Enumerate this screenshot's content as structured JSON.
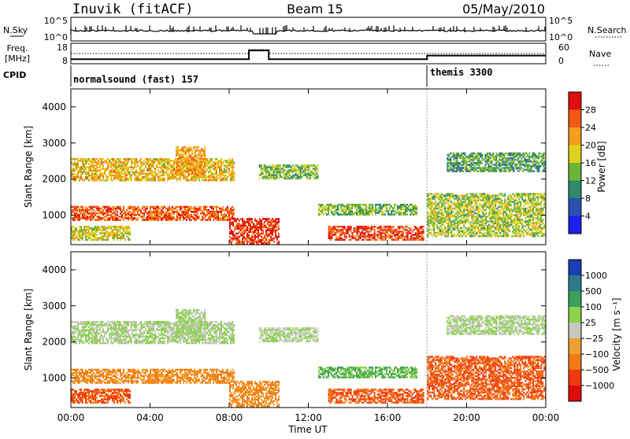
{
  "header": {
    "station": "Inuvik (fitACF)",
    "beam": "Beam 15",
    "date": "05/May/2010"
  },
  "nsky_panel": {
    "left_label": "N.Sky",
    "right_label": "N.Search",
    "ticks_left": [
      "10^5",
      "10^0"
    ],
    "ticks_right": [
      "10^5",
      "10^0"
    ]
  },
  "freq_panel": {
    "left_label_1": "Freq.",
    "left_label_2": "[MHz]",
    "right_label": "Nave",
    "ticks_left": [
      "18",
      "8"
    ],
    "ticks_right": [
      "60",
      "0"
    ],
    "freq_profile": [
      {
        "t": 0,
        "v": 10.2
      },
      {
        "t": 9.0,
        "v": 10.2
      },
      {
        "t": 9.0,
        "v": 14.5
      },
      {
        "t": 10.0,
        "v": 14.5
      },
      {
        "t": 10.0,
        "v": 10.2
      },
      {
        "t": 18.0,
        "v": 10.2
      },
      {
        "t": 18.0,
        "v": 12.0
      },
      {
        "t": 24.0,
        "v": 12.0
      }
    ]
  },
  "cpid": {
    "label": "CPID",
    "entries": [
      {
        "text": "normalsound (fast) 157",
        "start": 0
      },
      {
        "text": "themis 3300",
        "start": 18.0
      }
    ]
  },
  "power_panel": {
    "ylabel": "Slant Range [km]",
    "yticks": [
      "1000",
      "2000",
      "3000",
      "4000"
    ],
    "colorbar_label": "Power [dB]",
    "colorbar_ticks": [
      "4",
      "8",
      "12",
      "16",
      "20",
      "24",
      "28"
    ],
    "colors": [
      "#1e1ef0",
      "#2a4fb0",
      "#2e8a6a",
      "#6db53a",
      "#e0d21e",
      "#f59d1e",
      "#f25a14",
      "#e01010"
    ]
  },
  "velocity_panel": {
    "ylabel": "Slant Range [km]",
    "yticks": [
      "1000",
      "2000",
      "3000",
      "4000"
    ],
    "colorbar_label": "Velocity [m s⁻¹]",
    "colorbar_ticks": [
      "1000",
      "500",
      "100",
      "25",
      "−25",
      "−100",
      "−500",
      "−1000"
    ],
    "colors": [
      "#1a3fb5",
      "#2f7a8a",
      "#3aa05a",
      "#8ad24a",
      "#c8c8c0",
      "#f0a030",
      "#f27a14",
      "#ef3a10",
      "#e00a0a"
    ]
  },
  "x_axis": {
    "ticks": [
      "00:00",
      "04:00",
      "08:00",
      "12:00",
      "16:00",
      "20:00",
      "00:00"
    ],
    "label": "Time UT"
  },
  "chart_data": {
    "type": "heatmap",
    "xlabel": "Time UT",
    "x_range_hours": [
      0,
      24
    ],
    "ylabel": "Slant Range [km]",
    "ylim": [
      180,
      4500
    ],
    "echo_bands": [
      {
        "t0": 0.0,
        "t1": 8.2,
        "r0": 1950,
        "r1": 2550,
        "power": 20,
        "velocity": 25
      },
      {
        "t0": 5.3,
        "t1": 6.8,
        "r0": 2100,
        "r1": 2900,
        "power": 22,
        "velocity": 25
      },
      {
        "t0": 9.5,
        "t1": 12.5,
        "r0": 2000,
        "r1": 2400,
        "power": 14,
        "velocity": 25
      },
      {
        "t0": 0.0,
        "t1": 8.2,
        "r0": 850,
        "r1": 1250,
        "power": 26,
        "velocity": -100
      },
      {
        "t0": 0.0,
        "t1": 3.0,
        "r0": 300,
        "r1": 700,
        "power": 18,
        "velocity": -500
      },
      {
        "t0": 8.0,
        "t1": 10.5,
        "r0": 200,
        "r1": 900,
        "power": 28,
        "velocity": -100
      },
      {
        "t0": 13.0,
        "t1": 17.8,
        "r0": 300,
        "r1": 700,
        "power": 28,
        "velocity": -500
      },
      {
        "t0": 12.5,
        "t1": 17.5,
        "r0": 1000,
        "r1": 1300,
        "power": 14,
        "velocity": 100
      },
      {
        "t0": 18.0,
        "t1": 24.0,
        "r0": 400,
        "r1": 1600,
        "power": 16,
        "velocity": -500
      },
      {
        "t0": 19.0,
        "t1": 24.0,
        "r0": 2200,
        "r1": 2700,
        "power": 12,
        "velocity": 25
      }
    ]
  }
}
